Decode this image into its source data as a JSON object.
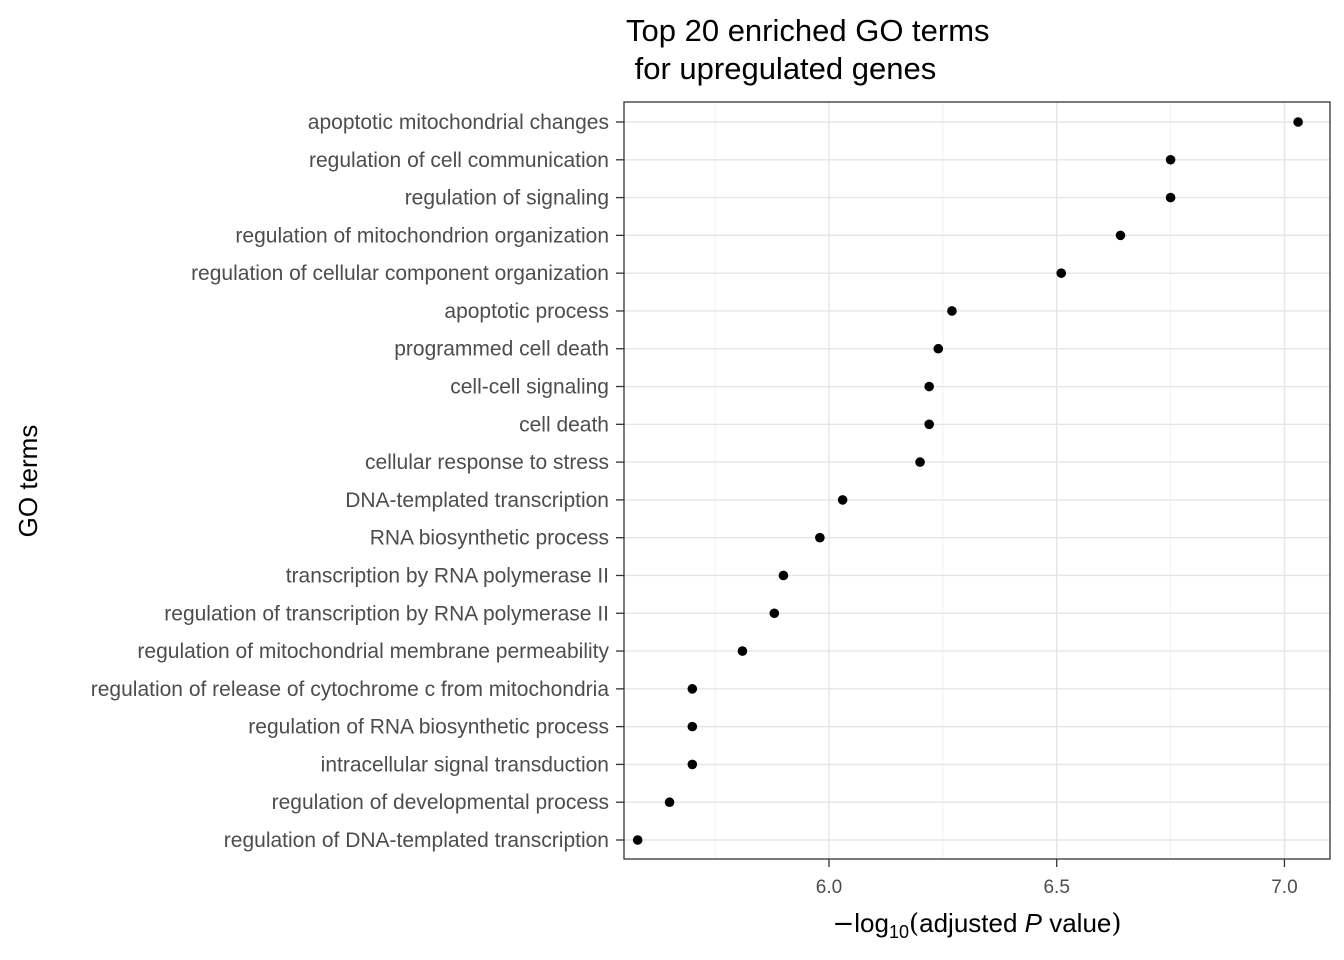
{
  "chart_data": {
    "type": "scatter",
    "title_lines": [
      "Top 20 enriched GO terms",
      " for upregulated genes"
    ],
    "ylabel": "GO terms",
    "xlabel": {
      "minus": "−",
      "log": "log",
      "base": "10",
      "open": "(",
      "pre": "adjusted ",
      "italic": "P",
      "post": " value",
      "close": ")"
    },
    "xlim": [
      5.55,
      7.1
    ],
    "x_ticks": [
      6.0,
      6.5,
      7.0
    ],
    "x_tick_labels": [
      "6.0",
      "6.5",
      "7.0"
    ],
    "grid": true,
    "categories": [
      "apoptotic mitochondrial changes",
      "regulation of cell communication",
      "regulation of signaling",
      "regulation of mitochondrion organization",
      "regulation of cellular component organization",
      "apoptotic process",
      "programmed cell death",
      "cell-cell signaling",
      "cell death",
      "cellular response to stress",
      "DNA-templated transcription",
      "RNA biosynthetic process",
      "transcription by RNA polymerase II",
      "regulation of transcription by RNA polymerase II",
      "regulation of mitochondrial membrane permeability",
      "regulation of release of cytochrome c from mitochondria",
      "regulation of RNA biosynthetic process",
      "intracellular signal transduction",
      "regulation of developmental process",
      "regulation of DNA-templated transcription"
    ],
    "values": [
      7.03,
      6.75,
      6.75,
      6.64,
      6.51,
      6.27,
      6.24,
      6.22,
      6.22,
      6.2,
      6.03,
      5.98,
      5.9,
      5.88,
      5.81,
      5.7,
      5.7,
      5.7,
      5.65,
      5.58
    ]
  }
}
